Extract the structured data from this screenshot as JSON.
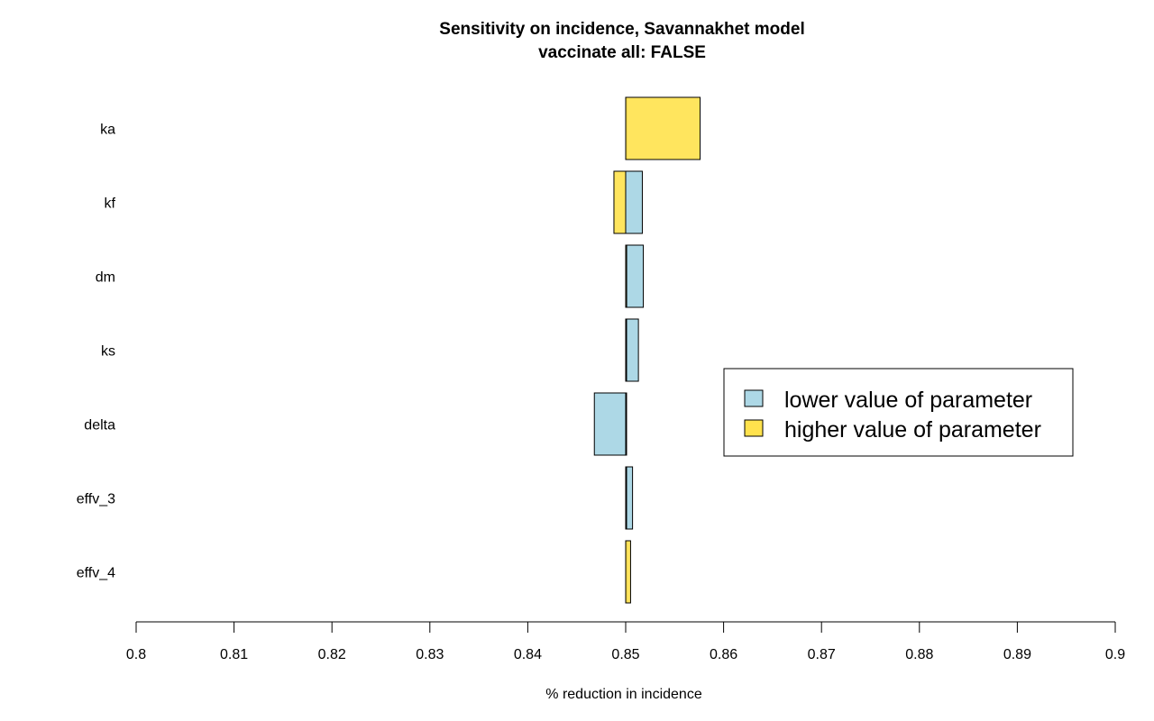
{
  "chart_data": {
    "type": "bar",
    "orientation": "horizontal",
    "title": "Sensitivity on incidence, Savannakhet model",
    "subtitle": "vaccinate all: FALSE",
    "xlabel": "% reduction in incidence",
    "ylabel": "",
    "xlim": [
      0.8,
      0.9
    ],
    "xticks": [
      "0.8",
      "0.81",
      "0.82",
      "0.83",
      "0.84",
      "0.85",
      "0.86",
      "0.87",
      "0.88",
      "0.89",
      "0.9"
    ],
    "baseline": 0.85,
    "categories": [
      "ka",
      "kf",
      "dm",
      "ks",
      "delta",
      "effv_3",
      "effv_4"
    ],
    "series": [
      {
        "name": "lower value of parameter",
        "color": "#add8e6",
        "values": [
          0.85,
          0.8517,
          0.8518,
          0.8513,
          0.8468,
          0.8507,
          0.85
        ]
      },
      {
        "name": "higher value of parameter",
        "color": "#ffe24d",
        "values": [
          0.8576,
          0.8488,
          0.8501,
          0.85,
          0.85,
          0.85,
          0.8505
        ]
      }
    ],
    "grid": false,
    "legend_position": "right"
  }
}
